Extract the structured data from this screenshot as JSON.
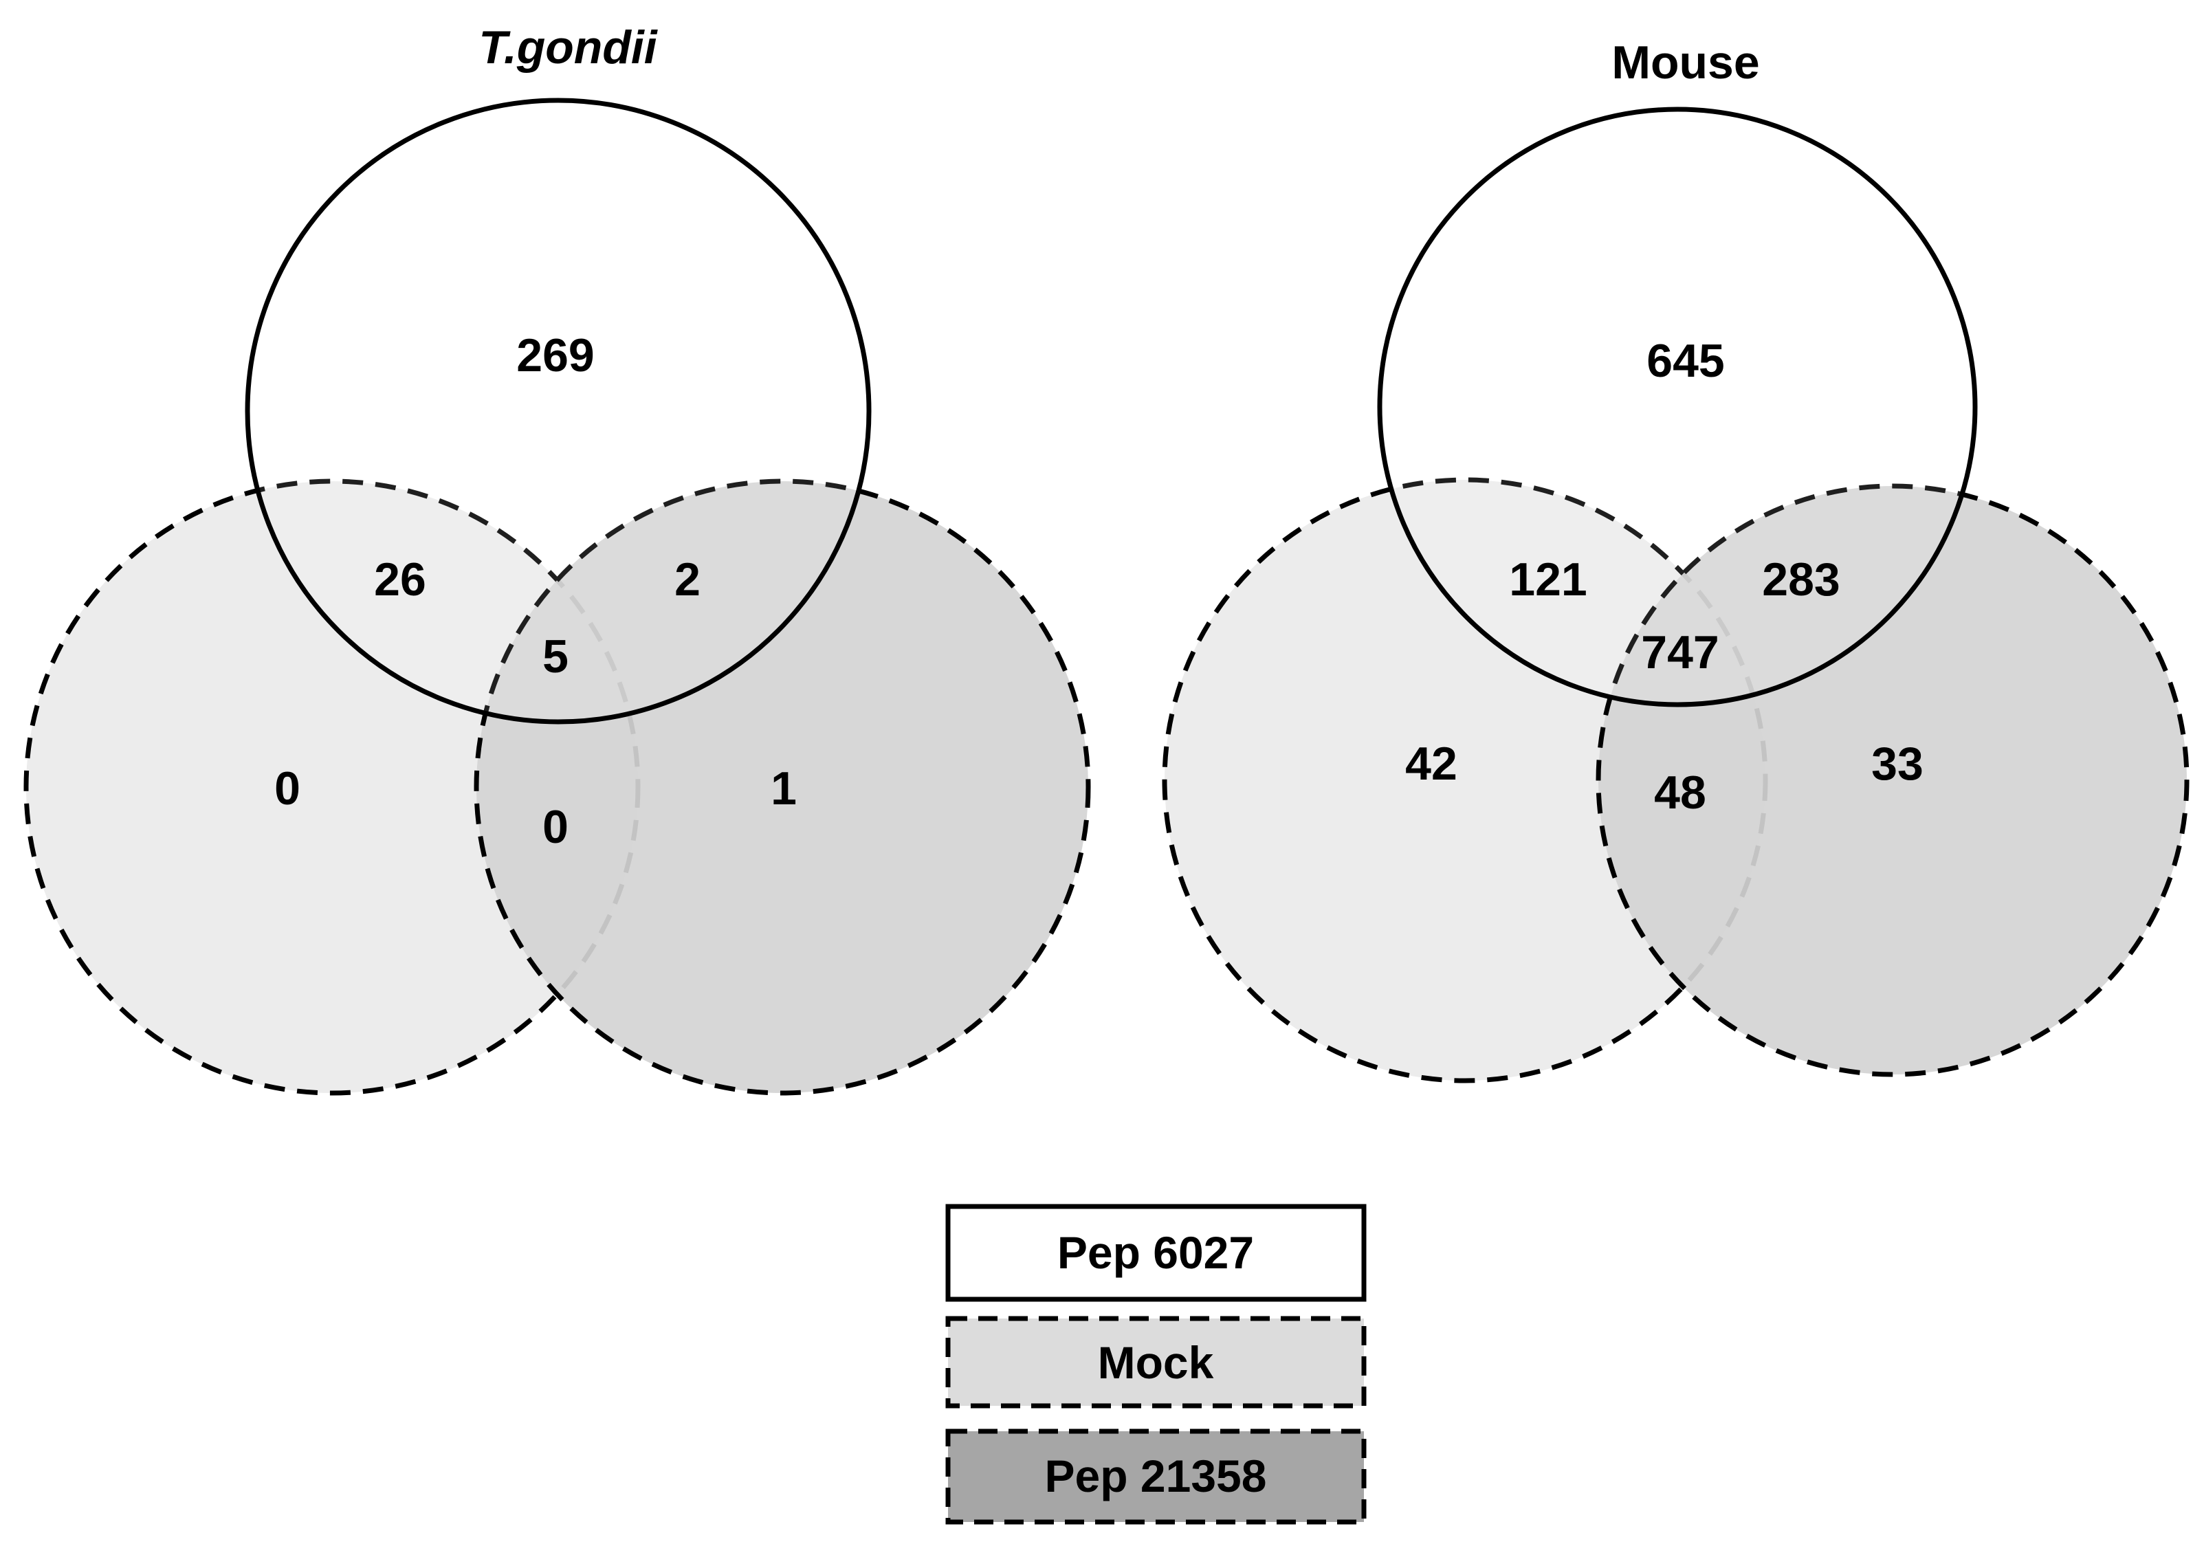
{
  "colors": {
    "background": "#ffffff",
    "stroke": "#000000",
    "mock_fill": "#ececec",
    "pep21358_fill": "#d4d4d4",
    "legend_mock_fill": "#dcdcdc",
    "legend_pep21358_fill": "#a6a6a6"
  },
  "venn_left": {
    "title": "T.gondii",
    "counts": {
      "pep6027_only": "269",
      "pep6027_mock": "26",
      "pep6027_pep21358": "2",
      "all_three": "5",
      "mock_only": "0",
      "mock_pep21358": "0",
      "pep21358_only": "1"
    }
  },
  "venn_right": {
    "title": "Mouse",
    "counts": {
      "pep6027_only": "645",
      "pep6027_mock": "121",
      "pep6027_pep21358": "283",
      "all_three": "747",
      "mock_only": "42",
      "mock_pep21358": "48",
      "pep21358_only": "33"
    }
  },
  "legend": {
    "items": [
      {
        "label": "Pep 6027",
        "border": "solid",
        "fill": "#ffffff"
      },
      {
        "label": "Mock",
        "border": "dashed",
        "fill": "#dcdcdc"
      },
      {
        "label": "Pep 21358",
        "border": "dashed",
        "fill": "#a6a6a6"
      }
    ]
  }
}
